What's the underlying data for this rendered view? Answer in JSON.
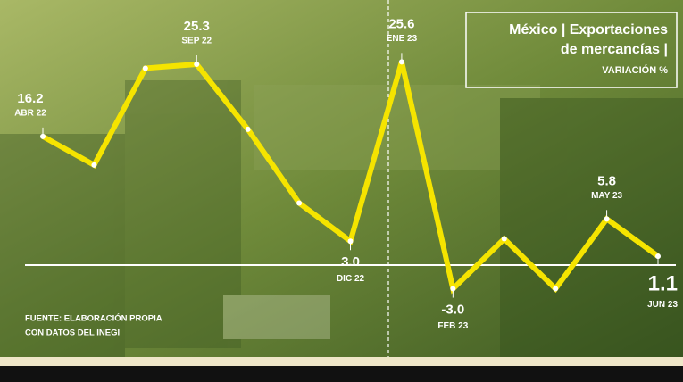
{
  "chart_data": {
    "type": "line",
    "title": [
      "México | Exportaciones",
      "de mercancías |",
      "VARIACIÓN %"
    ],
    "source": [
      "FUENTE: ELABORACIÓN PROPIA",
      "CON DATOS DEL INEGI"
    ],
    "categories": [
      "ABR 22",
      null,
      null,
      "SEP 22",
      null,
      null,
      "DIC 22",
      "ENE 23",
      "FEB 23",
      null,
      null,
      "MAY 23",
      "JUN 23"
    ],
    "values": [
      16.2,
      12.6,
      24.8,
      25.3,
      17.1,
      7.8,
      3.0,
      25.6,
      -3.0,
      3.3,
      -3.0,
      5.8,
      1.1
    ],
    "value_labels": [
      "16.2",
      null,
      null,
      "25.3",
      null,
      null,
      "3.0",
      "25.6",
      "-3.0",
      null,
      null,
      "5.8",
      "1.1"
    ],
    "color": "#f5e400",
    "ylim": [
      -11.6,
      33.4
    ]
  }
}
